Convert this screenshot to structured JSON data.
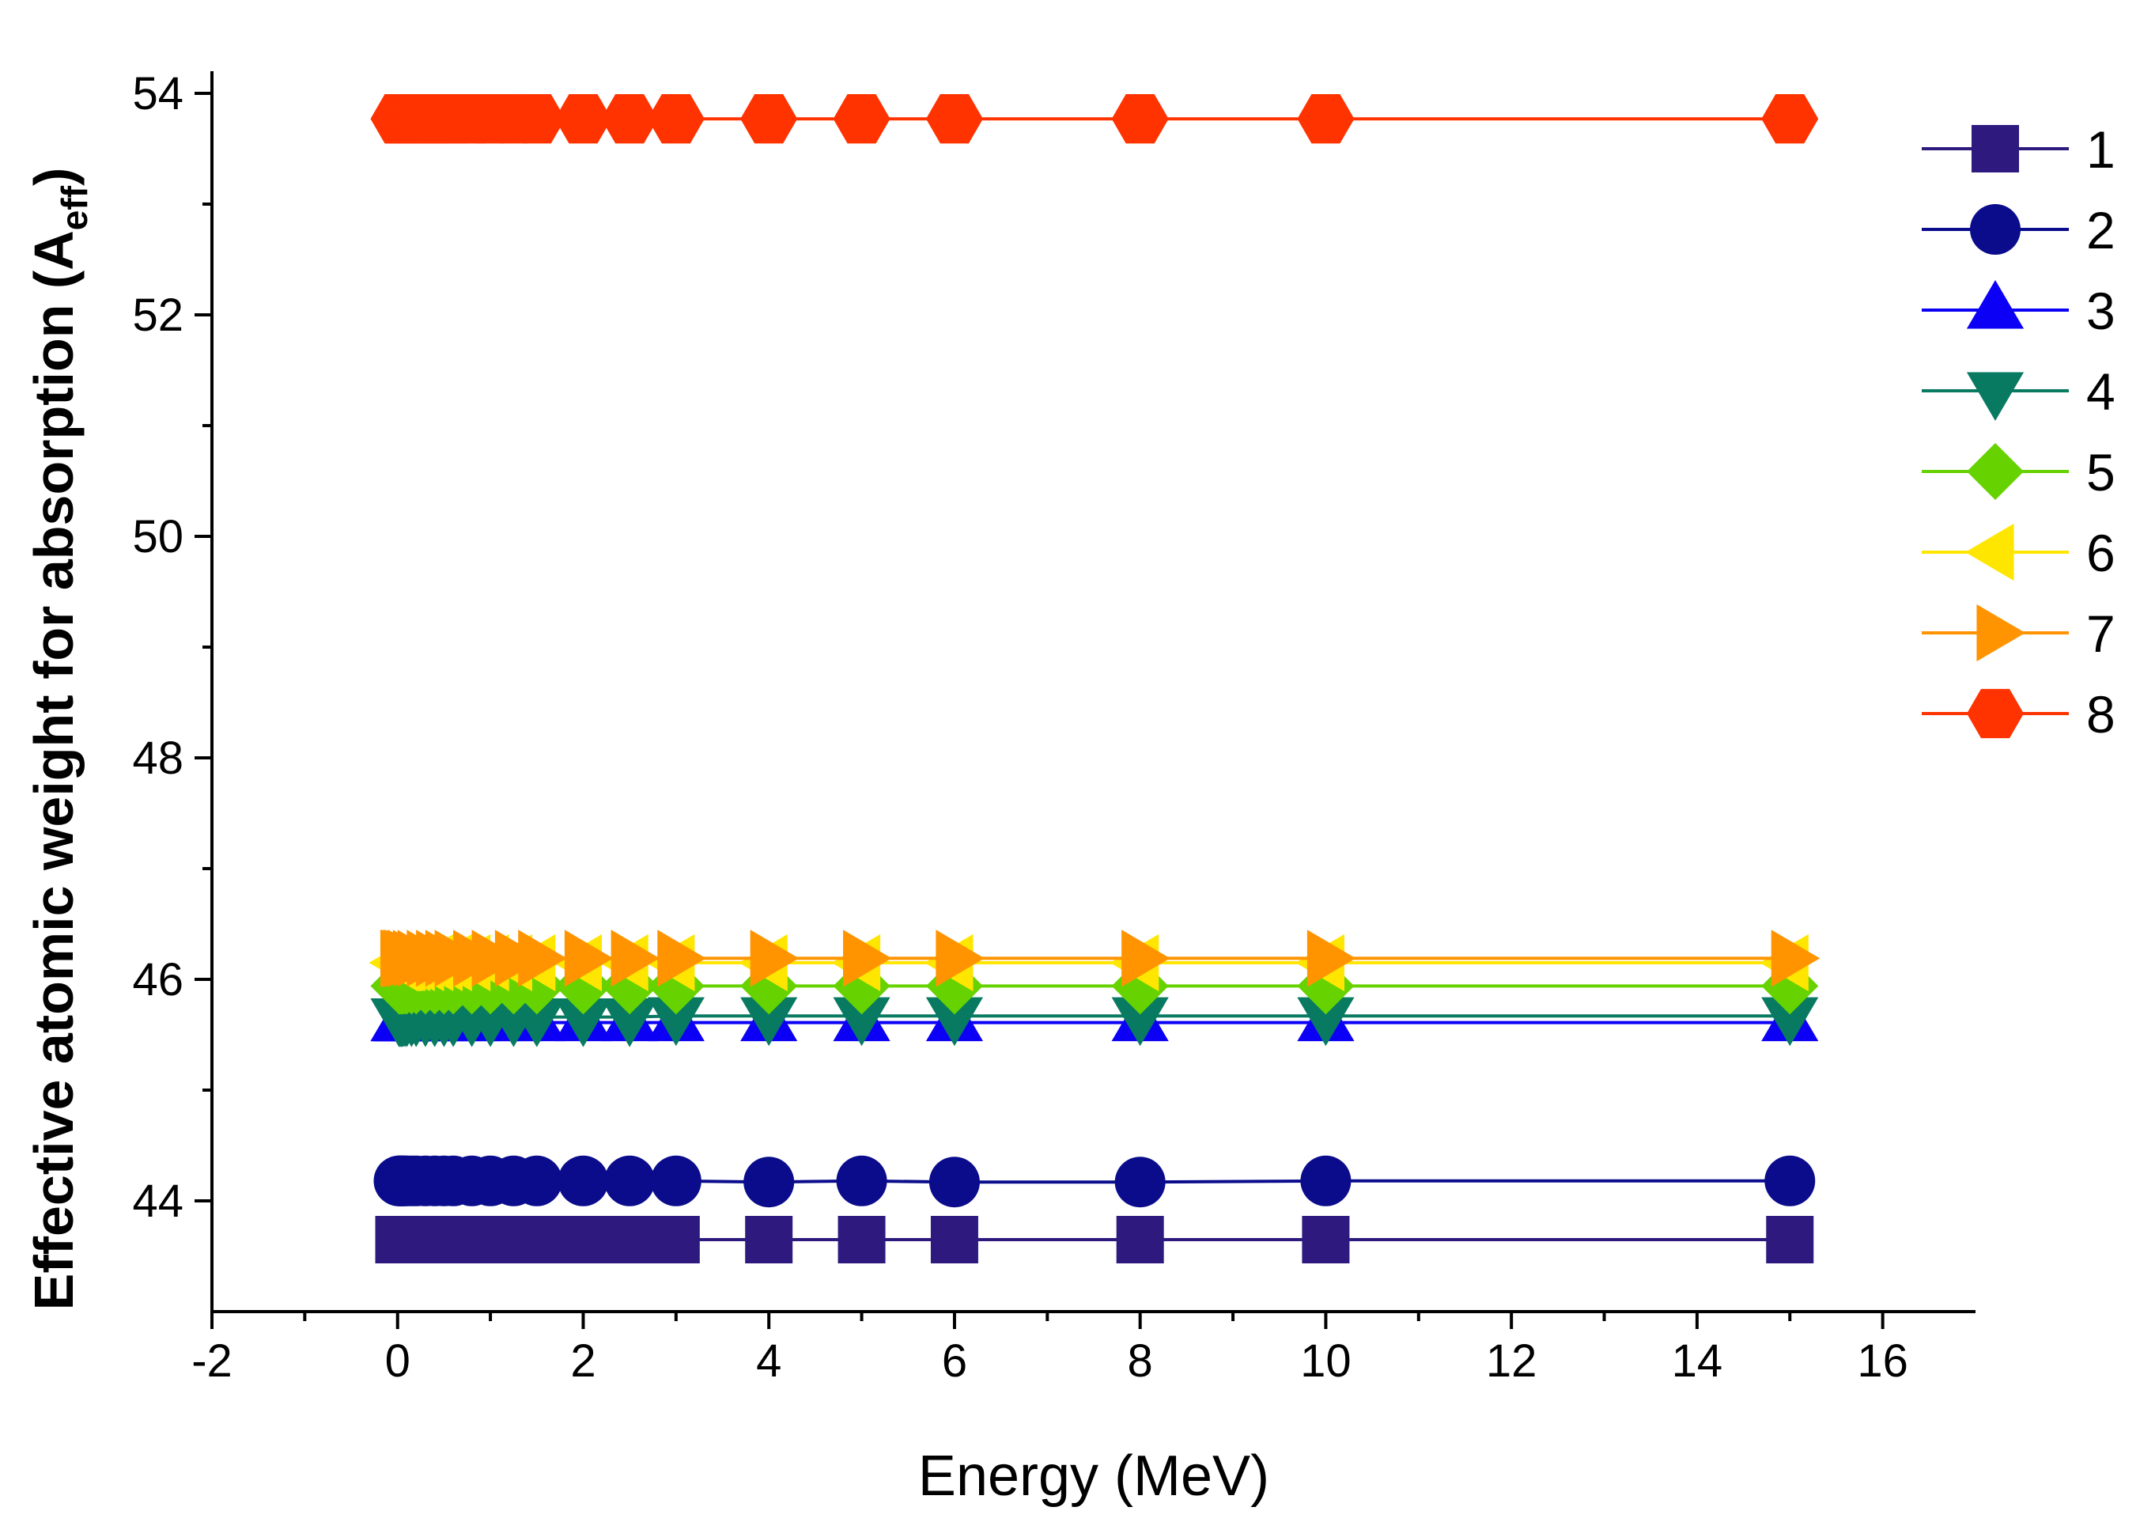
{
  "chart_data": {
    "type": "line",
    "title": "",
    "xlabel": "Energy (MeV)",
    "ylabel": {
      "main": "Effective atomic weight for absorption (A",
      "sub": "eff",
      "close": ")"
    },
    "xlim": [
      -2,
      17
    ],
    "ylim": [
      43,
      54.2
    ],
    "xticks": [
      {
        "value": -2,
        "label": "-2"
      },
      {
        "value": 0,
        "label": "0"
      },
      {
        "value": 2,
        "label": "2"
      },
      {
        "value": 4,
        "label": "4"
      },
      {
        "value": 6,
        "label": "6"
      },
      {
        "value": 8,
        "label": "8"
      },
      {
        "value": 10,
        "label": "10"
      },
      {
        "value": 12,
        "label": "12"
      },
      {
        "value": 14,
        "label": "14"
      },
      {
        "value": 16,
        "label": "16"
      }
    ],
    "yticks": [
      {
        "value": 44,
        "label": "44"
      },
      {
        "value": 46,
        "label": "46"
      },
      {
        "value": 48,
        "label": "48"
      },
      {
        "value": 50,
        "label": "50"
      },
      {
        "value": 52,
        "label": "52"
      },
      {
        "value": 54,
        "label": "54"
      }
    ],
    "x": [
      0.015,
      0.02,
      0.03,
      0.04,
      0.05,
      0.06,
      0.08,
      0.1,
      0.15,
      0.2,
      0.3,
      0.4,
      0.5,
      0.6,
      0.8,
      1.0,
      1.25,
      1.5,
      2,
      2.5,
      3,
      4,
      5,
      6,
      8,
      10,
      15
    ],
    "series": [
      {
        "name": "1",
        "marker": "square",
        "color": "#2E1A7E",
        "values": [
          43.65,
          43.65,
          43.65,
          43.65,
          43.65,
          43.65,
          43.65,
          43.65,
          43.65,
          43.65,
          43.65,
          43.65,
          43.65,
          43.65,
          43.65,
          43.65,
          43.65,
          43.65,
          43.65,
          43.65,
          43.65,
          43.65,
          43.65,
          43.65,
          43.65,
          43.65,
          43.65
        ]
      },
      {
        "name": "2",
        "marker": "circle",
        "color": "#0A0C8C",
        "values": [
          44.18,
          44.18,
          44.18,
          44.18,
          44.18,
          44.18,
          44.18,
          44.18,
          44.18,
          44.18,
          44.18,
          44.18,
          44.18,
          44.18,
          44.18,
          44.18,
          44.18,
          44.18,
          44.18,
          44.18,
          44.18,
          44.17,
          44.18,
          44.17,
          44.17,
          44.18,
          44.18
        ]
      },
      {
        "name": "3",
        "marker": "triangle-up",
        "color": "#0B00F5",
        "values": [
          45.61,
          45.61,
          45.61,
          45.61,
          45.61,
          45.61,
          45.61,
          45.61,
          45.61,
          45.61,
          45.61,
          45.61,
          45.61,
          45.61,
          45.61,
          45.61,
          45.61,
          45.61,
          45.61,
          45.61,
          45.61,
          45.61,
          45.61,
          45.61,
          45.61,
          45.61,
          45.61
        ]
      },
      {
        "name": "4",
        "marker": "triangle-down",
        "color": "#087A62",
        "values": [
          45.66,
          45.66,
          45.66,
          45.66,
          45.66,
          45.66,
          45.66,
          45.66,
          45.66,
          45.66,
          45.66,
          45.66,
          45.66,
          45.66,
          45.66,
          45.66,
          45.66,
          45.66,
          45.66,
          45.66,
          45.67,
          45.67,
          45.67,
          45.67,
          45.67,
          45.67,
          45.67
        ]
      },
      {
        "name": "5",
        "marker": "diamond",
        "color": "#66D200",
        "values": [
          45.94,
          45.94,
          45.94,
          45.94,
          45.94,
          45.94,
          45.94,
          45.94,
          45.94,
          45.94,
          45.94,
          45.94,
          45.94,
          45.94,
          45.94,
          45.94,
          45.94,
          45.94,
          45.94,
          45.94,
          45.94,
          45.94,
          45.94,
          45.94,
          45.94,
          45.94,
          45.94
        ]
      },
      {
        "name": "6",
        "marker": "triangle-left",
        "color": "#FFE600",
        "values": [
          46.15,
          46.15,
          46.15,
          46.15,
          46.15,
          46.15,
          46.15,
          46.15,
          46.15,
          46.15,
          46.15,
          46.15,
          46.15,
          46.15,
          46.15,
          46.15,
          46.15,
          46.15,
          46.15,
          46.15,
          46.15,
          46.15,
          46.15,
          46.15,
          46.15,
          46.15,
          46.15
        ]
      },
      {
        "name": "7",
        "marker": "triangle-right",
        "color": "#FF9400",
        "values": [
          46.19,
          46.19,
          46.19,
          46.19,
          46.19,
          46.19,
          46.19,
          46.19,
          46.19,
          46.19,
          46.19,
          46.19,
          46.19,
          46.19,
          46.19,
          46.19,
          46.19,
          46.19,
          46.19,
          46.19,
          46.19,
          46.19,
          46.19,
          46.19,
          46.19,
          46.19,
          46.19
        ]
      },
      {
        "name": "8",
        "marker": "hexagon",
        "color": "#FF3300",
        "values": [
          53.77,
          53.77,
          53.77,
          53.77,
          53.77,
          53.77,
          53.77,
          53.77,
          53.77,
          53.77,
          53.77,
          53.77,
          53.77,
          53.77,
          53.77,
          53.77,
          53.77,
          53.77,
          53.77,
          53.77,
          53.77,
          53.77,
          53.77,
          53.77,
          53.77,
          53.77,
          53.77
        ]
      }
    ],
    "legend": "right",
    "grid": false
  }
}
